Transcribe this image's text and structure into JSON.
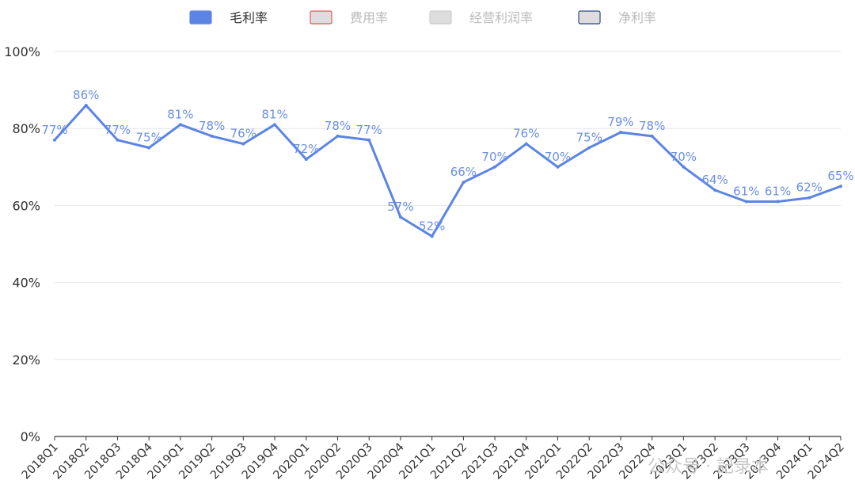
{
  "legend": [
    {
      "label": "毛利率",
      "fill": "#5b84e4",
      "stroke": "#5b84e4",
      "text_color": "#333333",
      "active": true
    },
    {
      "label": "费用率",
      "fill": "#dddddd",
      "stroke": "#e05a5a",
      "text_color": "#bbbbbb",
      "active": false
    },
    {
      "label": "经营利润率",
      "fill": "#dddddd",
      "stroke": "#cccccc",
      "text_color": "#bbbbbb",
      "active": false
    },
    {
      "label": "净利率",
      "fill": "#dddddd",
      "stroke": "#2f4a8f",
      "text_color": "#bbbbbb",
      "active": false
    }
  ],
  "watermark": "公众号 · 記录本",
  "colors": {
    "line": "#5b84e4",
    "label": "#6b8fe6",
    "grid": "#e6e6e6",
    "axis": "#333333"
  },
  "chart_data": {
    "type": "line",
    "categories": [
      "2018Q1",
      "2018Q2",
      "2018Q3",
      "2018Q4",
      "2019Q1",
      "2019Q2",
      "2019Q3",
      "2019Q4",
      "2020Q1",
      "2020Q2",
      "2020Q3",
      "2020Q4",
      "2021Q1",
      "2021Q2",
      "2021Q3",
      "2021Q4",
      "2022Q1",
      "2022Q2",
      "2022Q3",
      "2022Q4",
      "2023Q1",
      "2023Q2",
      "2023Q3",
      "2023Q4",
      "2024Q1",
      "2024Q2"
    ],
    "series": [
      {
        "name": "毛利率",
        "values": [
          77,
          86,
          77,
          75,
          81,
          78,
          76,
          81,
          72,
          78,
          77,
          57,
          52,
          66,
          70,
          76,
          70,
          75,
          79,
          78,
          70,
          64,
          61,
          61,
          62,
          65
        ],
        "labels": [
          "77%",
          "86%",
          "77%",
          "75%",
          "81%",
          "78%",
          "76%",
          "81%",
          "72%",
          "78%",
          "77%",
          "57%",
          "52%",
          "66%",
          "70%",
          "76%",
          "70%",
          "75%",
          "79%",
          "78%",
          "70%",
          "64%",
          "61%",
          "61%",
          "62%",
          "65%"
        ]
      }
    ],
    "y_ticks": [
      "0%",
      "20%",
      "40%",
      "60%",
      "80%",
      "100%"
    ],
    "ylim": [
      0,
      100
    ],
    "grid": true,
    "legend_position": "top-center"
  }
}
